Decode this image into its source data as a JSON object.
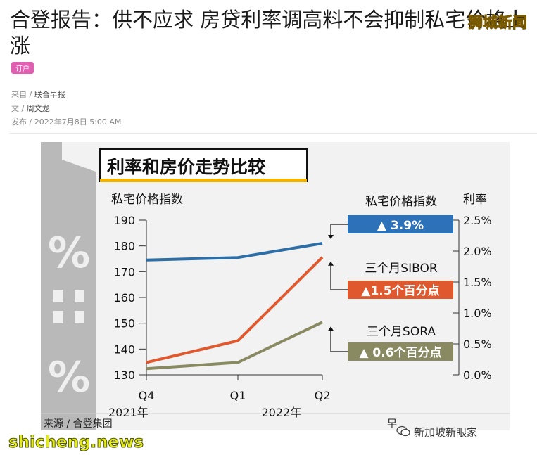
{
  "article": {
    "title": "合登报告：供不应求 房贷利率调高料不会抑制私宅价格上涨",
    "tag": "订户",
    "source_label": "来自 /",
    "source": "联合早报",
    "author_label": "文 /",
    "author": "周文龙",
    "published_label": "发布 /",
    "published": "2022年7月8日 5:00 AM"
  },
  "watermarks": {
    "top": "狮城新闻",
    "bottom": "shicheng.news",
    "brand": "新加坡新眼家"
  },
  "figure": {
    "house_percent_symbol": "%",
    "footer_source": "来源 / 合登集团",
    "footer_right": "早"
  },
  "chart_data": {
    "type": "line",
    "title": "利率和房价走势比较",
    "ylabel_left": "私宅价格指数",
    "ylabel_right": "利率",
    "categories": [
      "Q4",
      "Q1",
      "Q2"
    ],
    "year_labels": [
      "2021年",
      "2022年"
    ],
    "y_left_ticks": [
      130,
      140,
      150,
      160,
      170,
      180,
      190
    ],
    "y_left_range": [
      130,
      190
    ],
    "y_right_ticks": [
      "0.0%",
      "0.5%",
      "1.0%",
      "1.5%",
      "2.0%",
      "2.5%"
    ],
    "y_right_range": [
      0.0,
      2.5
    ],
    "series": [
      {
        "name": "私宅价格指数",
        "axis": "left",
        "color": "#2e6ea6",
        "values": [
          174.5,
          175.5,
          181
        ]
      },
      {
        "name": "三个月SIBOR",
        "axis": "right",
        "color": "#e0582e",
        "values": [
          0.2,
          0.55,
          1.9
        ]
      },
      {
        "name": "三个月SORA",
        "axis": "right",
        "color": "#8a8a62",
        "values": [
          0.1,
          0.2,
          0.85
        ]
      }
    ],
    "annotations": [
      {
        "series": "私宅价格指数",
        "label": "私宅价格指数",
        "badge": "▲ 3.9%",
        "color": "#2d72b8"
      },
      {
        "series": "三个月SIBOR",
        "label": "三个月SIBOR",
        "badge": "▲1.5个百分点",
        "color": "#e0582e"
      },
      {
        "series": "三个月SORA",
        "label": "三个月SORA",
        "badge": "▲ 0.6个百分点",
        "color": "#8a8a62"
      }
    ],
    "grid": false
  }
}
